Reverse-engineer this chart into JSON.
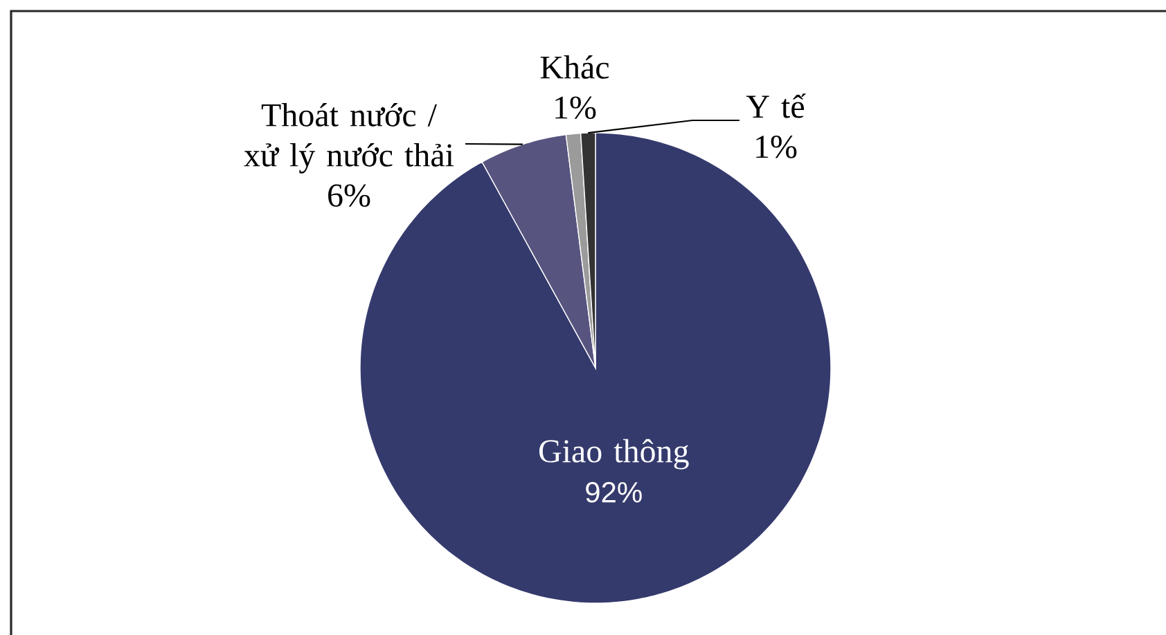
{
  "chart_data": {
    "type": "pie",
    "categories": [
      "Giao thông",
      "Thoát nước / xử lý nước thải",
      "Khác",
      "Y tế"
    ],
    "values": [
      92,
      6,
      1,
      1
    ],
    "colors": [
      "#353a6d",
      "#57557f",
      "#9b9b9b",
      "#333333"
    ],
    "value_labels": [
      "92%",
      "6%",
      "1%",
      "1%"
    ]
  }
}
